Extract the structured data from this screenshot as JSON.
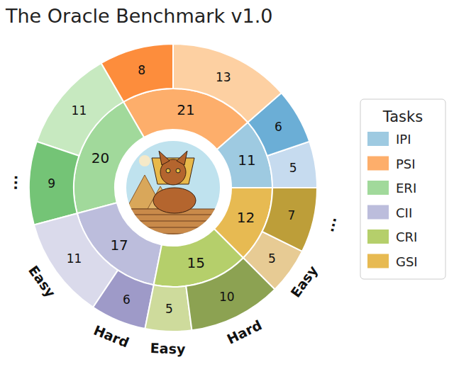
{
  "chart_data": {
    "type": "sunburst",
    "title": "The Oracle Benchmark v1.0",
    "legend_title": "Tasks",
    "legend": "right",
    "data_labels": true,
    "categories": [
      "IPI",
      "PSI",
      "ERI",
      "CII",
      "CRI",
      "GSI"
    ],
    "values": [
      11,
      21,
      20,
      17,
      15,
      12
    ],
    "colors": [
      "#9ecae1",
      "#fdae6b",
      "#a1d99b",
      "#bcbddc",
      "#b5cf6b",
      "#e7ba52"
    ],
    "children": [
      {
        "labels": [
          null,
          null
        ],
        "values": [
          5,
          6
        ],
        "colors": [
          "#c6dbef",
          "#6baed6"
        ]
      },
      {
        "labels": [
          null,
          null
        ],
        "values": [
          13,
          8
        ],
        "colors": [
          "#fdd0a2",
          "#fd8d3c"
        ]
      },
      {
        "labels": [
          null,
          "..."
        ],
        "values": [
          11,
          9
        ],
        "colors": [
          "#c7e9c0",
          "#74c476"
        ]
      },
      {
        "labels": [
          "Easy",
          "Hard"
        ],
        "values": [
          11,
          6
        ],
        "colors": [
          "#dadaeb",
          "#9e9ac8"
        ]
      },
      {
        "labels": [
          "Easy",
          "Hard"
        ],
        "values": [
          5,
          10
        ],
        "colors": [
          "#cedb9c",
          "#8ca252"
        ]
      },
      {
        "labels": [
          "Easy",
          "..."
        ],
        "values": [
          5,
          7
        ],
        "colors": [
          "#e7cb94",
          "#bd9e39"
        ]
      }
    ]
  }
}
